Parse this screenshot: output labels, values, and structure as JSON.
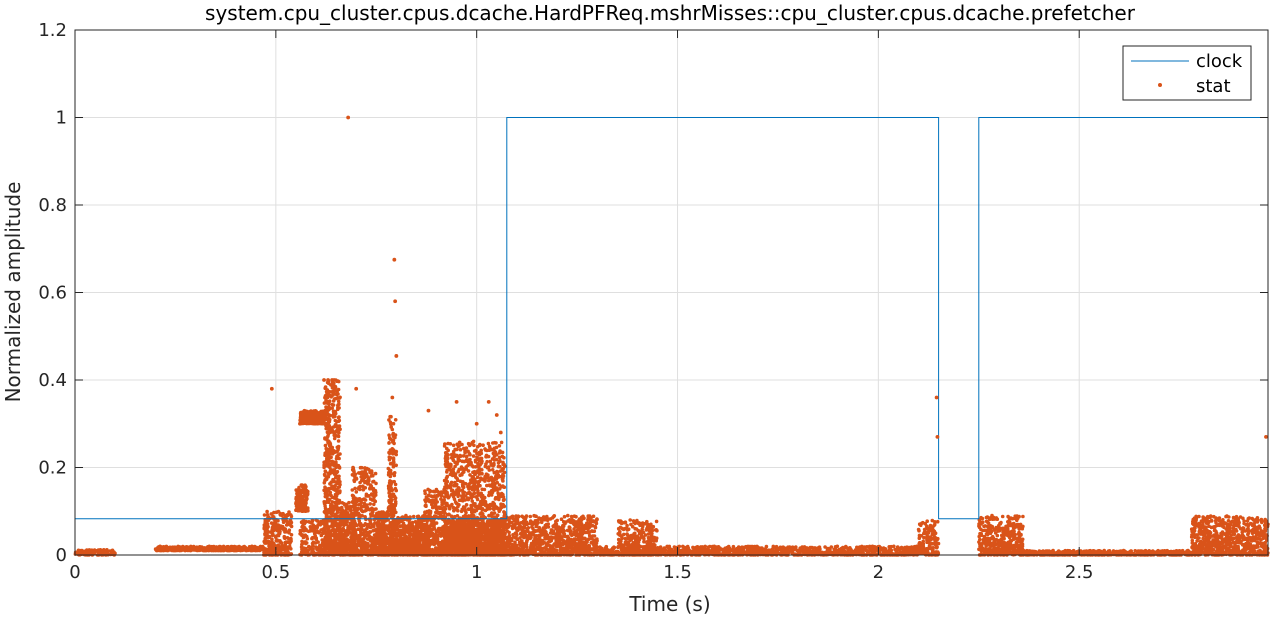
{
  "chart_data": {
    "type": "line",
    "title": "system.cpu_cluster.cpus.dcache.HardPFReq.mshrMisses::cpu_cluster.cpus.dcache.prefetcher",
    "xlabel": "Time (s)",
    "ylabel": "Normalized amplitude",
    "xlim": [
      0,
      2.97
    ],
    "ylim": [
      0,
      1.2
    ],
    "xticks": [
      0,
      0.5,
      1,
      1.5,
      2,
      2.5
    ],
    "xtick_labels": [
      "0",
      "0.5",
      "1",
      "1.5",
      "2",
      "2.5"
    ],
    "yticks": [
      0,
      0.2,
      0.4,
      0.6,
      0.8,
      1,
      1.2
    ],
    "ytick_labels": [
      "0",
      "0.2",
      "0.4",
      "0.6",
      "0.8",
      "1",
      "1.2"
    ],
    "grid": true,
    "legend_position": "top-right",
    "series": [
      {
        "name": "clock",
        "style": "line",
        "color": "#0072BD",
        "x": [
          0,
          1.075,
          1.075,
          2.15,
          2.15,
          2.25,
          2.25,
          2.97
        ],
        "y": [
          0.083,
          0.083,
          1,
          1,
          0.083,
          0.083,
          1,
          1
        ]
      },
      {
        "name": "stat",
        "style": "markers",
        "color": "#D95319",
        "x": [
          0.68,
          0.795,
          0.797,
          0.8,
          2.145,
          2.147,
          2.965,
          0.49,
          0.56,
          0.62,
          0.63,
          0.64,
          0.645,
          0.7,
          0.79,
          0.88,
          0.95,
          1.0,
          1.03,
          1.05,
          1.06,
          0.53
        ],
        "y": [
          1.0,
          0.675,
          0.58,
          0.455,
          0.36,
          0.27,
          0.27,
          0.38,
          0.3,
          0.4,
          0.4,
          0.4,
          0.4,
          0.38,
          0.36,
          0.33,
          0.35,
          0.3,
          0.35,
          0.32,
          0.28,
          0.07
        ]
      }
    ]
  }
}
